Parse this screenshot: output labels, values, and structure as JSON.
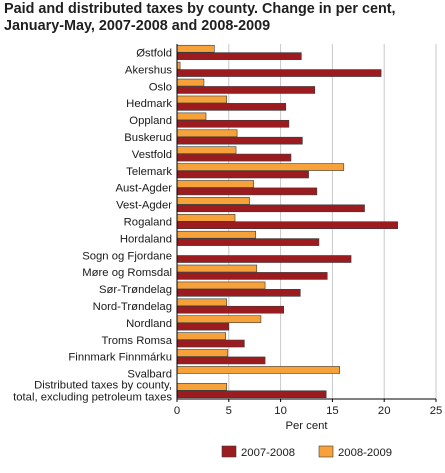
{
  "header": {
    "title_line1": "Paid and distributed taxes by county. Change in per cent,",
    "title_line2": "January-May, 2007-2008 and 2008-2009"
  },
  "chart_data": {
    "type": "bar",
    "orientation": "horizontal",
    "title": "Paid and distributed taxes by county. Change in per cent, January-May, 2007-2008 and 2008-2009",
    "xlabel": "Per cent",
    "ylabel": "",
    "xlim": [
      0,
      25
    ],
    "xticks": [
      0,
      5,
      10,
      15,
      20,
      25
    ],
    "grid": true,
    "legend_position": "bottom",
    "categories": [
      "Østfold",
      "Akershus",
      "Oslo",
      "Hedmark",
      "Oppland",
      "Buskerud",
      "Vestfold",
      "Telemark",
      "Aust-Agder",
      "Vest-Agder",
      "Rogaland",
      "Hordaland",
      "Sogn og Fjordane",
      "Møre og Romsdal",
      "Sør-Trøndelag",
      "Nord-Trøndelag",
      "Nordland",
      "Troms Romsa",
      "Finnmark Finnmárku",
      "Svalbard",
      [
        "Distributed taxes by county,",
        "total, excluding petroleum taxes"
      ]
    ],
    "series": [
      {
        "name": "2008-2009",
        "color": "#f7a13b",
        "values": [
          3.6,
          0.3,
          2.6,
          4.8,
          2.8,
          5.8,
          5.7,
          16.1,
          7.4,
          7.0,
          5.6,
          7.6,
          0.0,
          7.7,
          8.5,
          4.8,
          8.1,
          4.7,
          4.9,
          15.7,
          4.8
        ]
      },
      {
        "name": "2007-2008",
        "color": "#9b1b1f",
        "values": [
          12.0,
          19.7,
          13.3,
          10.5,
          10.8,
          12.1,
          11.0,
          12.7,
          13.5,
          18.1,
          21.3,
          13.7,
          16.8,
          14.5,
          11.9,
          10.3,
          5.0,
          6.5,
          8.5,
          0.0,
          14.4
        ]
      }
    ]
  },
  "legend": {
    "items": [
      {
        "label": "2007-2008",
        "color": "#9b1b1f"
      },
      {
        "label": "2008-2009",
        "color": "#f7a13b"
      }
    ]
  }
}
